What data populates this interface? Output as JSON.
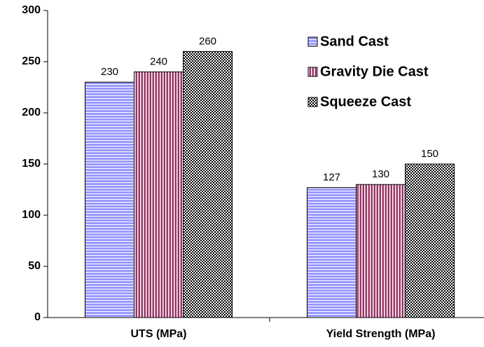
{
  "chart_data": {
    "type": "bar",
    "categories": [
      "UTS (MPa)",
      "Yield Strength (MPa)"
    ],
    "series": [
      {
        "name": "Sand Cast",
        "color": "#9999ff",
        "pattern": "horizontal",
        "values": [
          230,
          127
        ]
      },
      {
        "name": "Gravity Die Cast",
        "color": "#993366",
        "pattern": "vertical",
        "values": [
          240,
          130
        ]
      },
      {
        "name": "Squeeze Cast",
        "color": "#000000",
        "pattern": "checker",
        "values": [
          260,
          150
        ]
      }
    ],
    "ylim": [
      0,
      300
    ],
    "yticks": [
      0,
      50,
      100,
      150,
      200,
      250,
      300
    ],
    "grid": false,
    "legend": "upper right"
  }
}
